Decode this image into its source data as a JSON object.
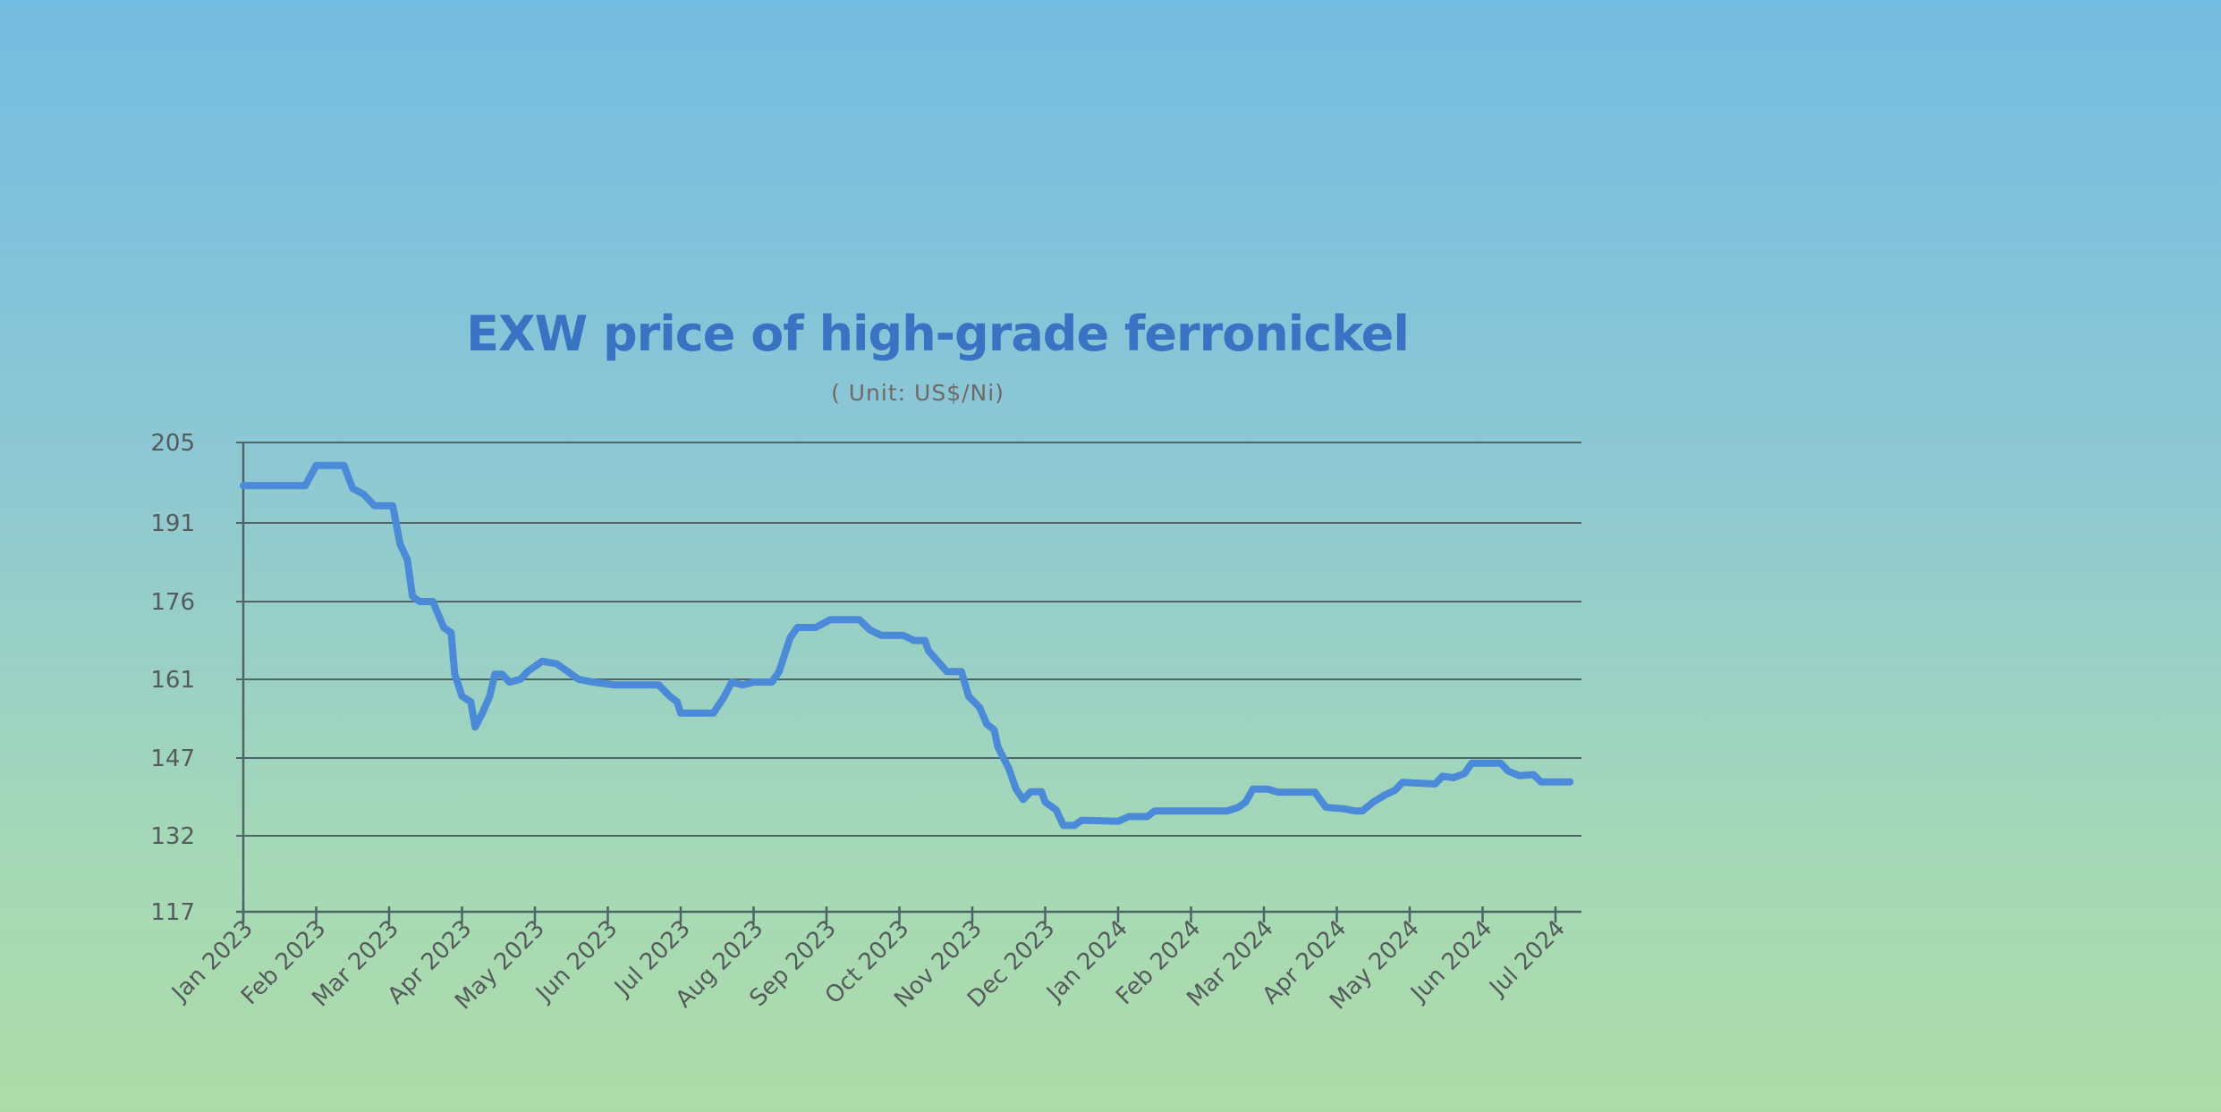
{
  "chart_data": {
    "type": "line",
    "title": "EXW price of high-grade ferronickel",
    "subtitle": "( Unit: US$/Ni)",
    "xlabel": "",
    "ylabel": "",
    "y_ticks": [
      "205",
      "191",
      "176",
      "161",
      "147",
      "132",
      "117"
    ],
    "y_tick_values": [
      205,
      191,
      176,
      161,
      147,
      132,
      117
    ],
    "ylim": [
      117,
      205
    ],
    "categories": [
      "Jan 2023",
      "Feb 2023",
      "Mar 2023",
      "Apr 2023",
      "May 2023",
      "Jun 2023",
      "Jul 2023",
      "Aug 2023",
      "Sep 2023",
      "Oct 2023",
      "Nov 2023",
      "Dec 2023",
      "Jan 2024",
      "Feb 2024",
      "Mar 2024",
      "Apr 2024",
      "May 2024",
      "Jun 2024",
      "Jul 2024"
    ],
    "grid": true,
    "series": [
      {
        "name": "EXW price of high-grade ferronickel",
        "color": "#4b8ad8",
        "points": [
          [
            0,
            197.5
          ],
          [
            0.85,
            197.5
          ],
          [
            1.0,
            201
          ],
          [
            1.38,
            201
          ],
          [
            1.5,
            197
          ],
          [
            1.65,
            196
          ],
          [
            1.8,
            194
          ],
          [
            2.05,
            194
          ],
          [
            2.15,
            187
          ],
          [
            2.25,
            184
          ],
          [
            2.32,
            177
          ],
          [
            2.42,
            176
          ],
          [
            2.6,
            176
          ],
          [
            2.75,
            171
          ],
          [
            2.85,
            170
          ],
          [
            2.9,
            162
          ],
          [
            3.0,
            158
          ],
          [
            3.12,
            157
          ],
          [
            3.18,
            152.5
          ],
          [
            3.28,
            155
          ],
          [
            3.38,
            158
          ],
          [
            3.45,
            162
          ],
          [
            3.55,
            162
          ],
          [
            3.65,
            160.5
          ],
          [
            3.8,
            161
          ],
          [
            3.9,
            162.5
          ],
          [
            4.1,
            164.5
          ],
          [
            4.3,
            164
          ],
          [
            4.45,
            162.5
          ],
          [
            4.6,
            161
          ],
          [
            4.8,
            160.5
          ],
          [
            5.1,
            160
          ],
          [
            5.7,
            160
          ],
          [
            5.85,
            158
          ],
          [
            5.95,
            157
          ],
          [
            6.0,
            155
          ],
          [
            6.45,
            155
          ],
          [
            6.6,
            158
          ],
          [
            6.7,
            160.5
          ],
          [
            6.85,
            160
          ],
          [
            7.0,
            160.5
          ],
          [
            7.25,
            160.5
          ],
          [
            7.35,
            162.5
          ],
          [
            7.5,
            169
          ],
          [
            7.6,
            171
          ],
          [
            7.85,
            171
          ],
          [
            8.05,
            172.5
          ],
          [
            8.45,
            172.5
          ],
          [
            8.6,
            170.5
          ],
          [
            8.75,
            169.5
          ],
          [
            9.05,
            169.5
          ],
          [
            9.2,
            168.5
          ],
          [
            9.35,
            168.5
          ],
          [
            9.4,
            166.5
          ],
          [
            9.65,
            162.5
          ],
          [
            9.85,
            162.5
          ],
          [
            9.95,
            158
          ],
          [
            10.1,
            156
          ],
          [
            10.2,
            153
          ],
          [
            10.3,
            152
          ],
          [
            10.35,
            149
          ],
          [
            10.5,
            145
          ],
          [
            10.6,
            141
          ],
          [
            10.7,
            139
          ],
          [
            10.8,
            140.5
          ],
          [
            10.95,
            140.5
          ],
          [
            11.0,
            138.5
          ],
          [
            11.15,
            137
          ],
          [
            11.25,
            134
          ],
          [
            11.4,
            134
          ],
          [
            11.5,
            135
          ],
          [
            12.0,
            134.8
          ],
          [
            12.15,
            135.7
          ],
          [
            12.4,
            135.7
          ],
          [
            12.5,
            136.8
          ],
          [
            12.8,
            136.8
          ],
          [
            13.5,
            136.8
          ],
          [
            13.65,
            137.5
          ],
          [
            13.75,
            138.5
          ],
          [
            13.85,
            141
          ],
          [
            14.05,
            141
          ],
          [
            14.2,
            140.4
          ],
          [
            14.7,
            140.4
          ],
          [
            14.85,
            137.5
          ],
          [
            15.1,
            137.2
          ],
          [
            15.25,
            136.8
          ],
          [
            15.35,
            136.8
          ],
          [
            15.5,
            138.5
          ],
          [
            15.65,
            139.8
          ],
          [
            15.8,
            140.8
          ],
          [
            15.9,
            142.3
          ],
          [
            16.35,
            142
          ],
          [
            16.45,
            143.5
          ],
          [
            16.6,
            143.2
          ],
          [
            16.75,
            144
          ],
          [
            16.85,
            146
          ],
          [
            17.25,
            146
          ],
          [
            17.35,
            144.5
          ],
          [
            17.5,
            143.6
          ],
          [
            17.7,
            143.8
          ],
          [
            17.8,
            142.4
          ],
          [
            18.2,
            142.4
          ]
        ]
      }
    ]
  }
}
